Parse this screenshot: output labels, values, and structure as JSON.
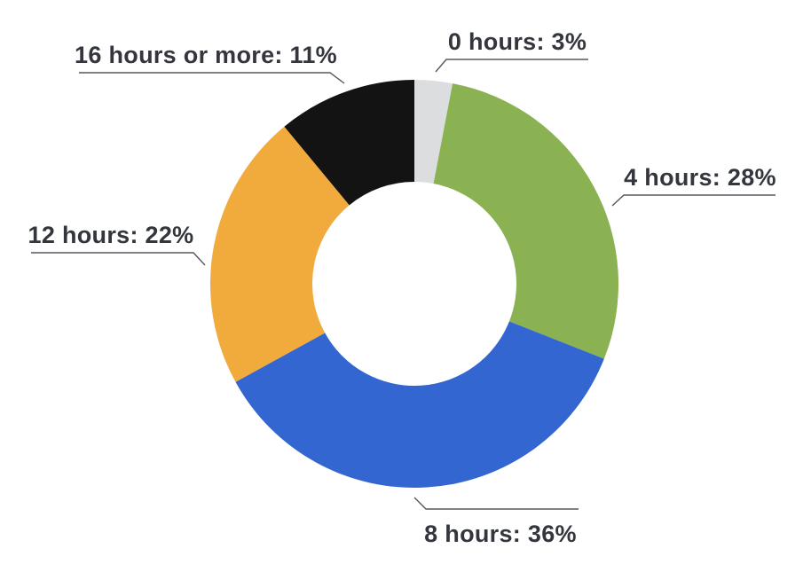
{
  "page": {
    "background_color": "#ffffff",
    "text_color": "#33363D",
    "leader_line_color": "#55585D"
  },
  "chart_data": {
    "type": "pie",
    "subtype": "donut",
    "title": "",
    "categories": [
      "0 hours",
      "4 hours",
      "8 hours",
      "12 hours",
      "16 hours or more"
    ],
    "values": [
      3,
      28,
      36,
      22,
      11
    ],
    "unit": "%",
    "colors": [
      "#DBDDDF",
      "#8AB152",
      "#3366D1",
      "#F1AA3C",
      "#131313"
    ],
    "labels": [
      "0 hours: 3%",
      "4 hours: 28%",
      "8 hours: 36%",
      "12 hours: 22%",
      "16 hours or more: 11%"
    ],
    "start_angle_deg": 0,
    "direction": "clockwise",
    "legend_position": "none",
    "grid": false,
    "annotations": "callout labels with leader lines outside the ring"
  }
}
